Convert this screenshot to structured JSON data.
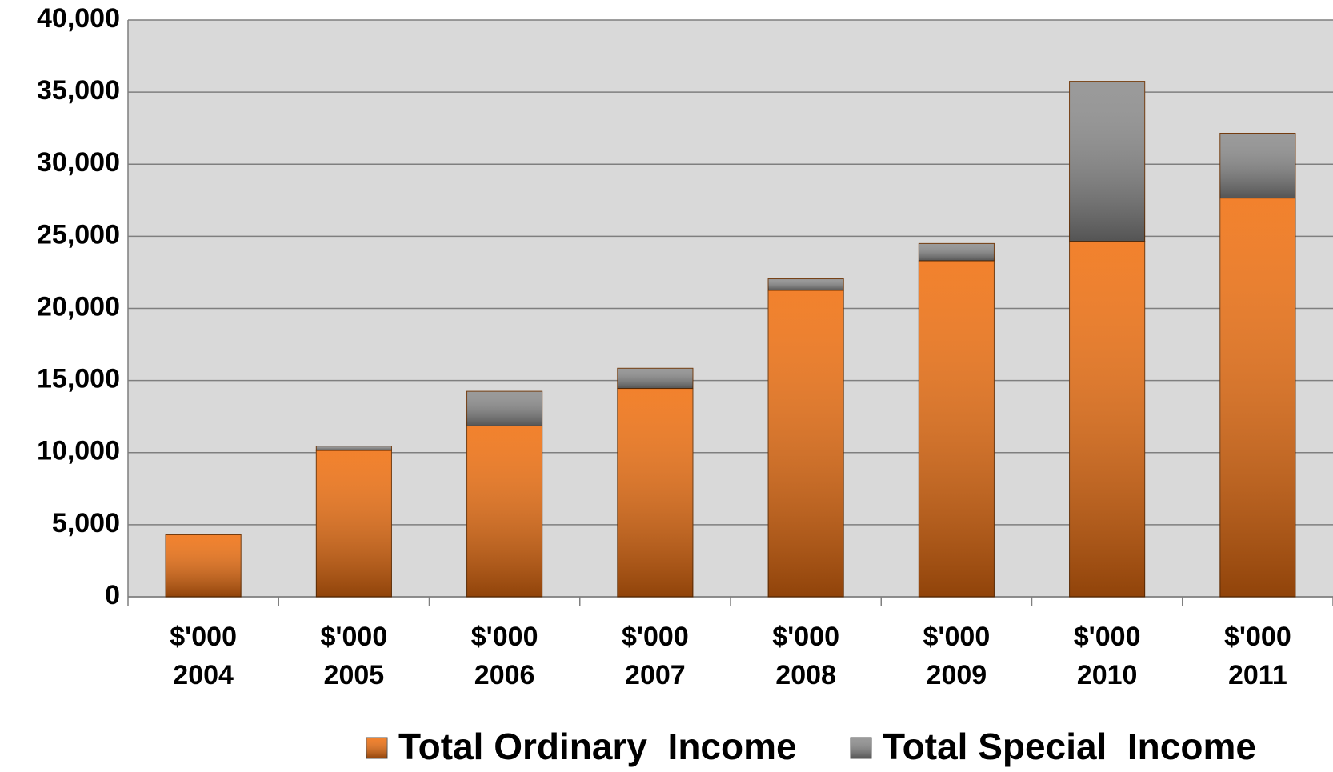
{
  "chart_data": {
    "type": "bar",
    "stacked": true,
    "categories": [
      [
        "$'000",
        "2004"
      ],
      [
        "$'000",
        "2005"
      ],
      [
        "$'000",
        "2006"
      ],
      [
        "$'000",
        "2007"
      ],
      [
        "$'000",
        "2008"
      ],
      [
        "$'000",
        "2009"
      ],
      [
        "$'000",
        "2010"
      ],
      [
        "$'000",
        "2011"
      ]
    ],
    "series": [
      {
        "name": "Total Ordinary  Income",
        "color": "#f07010",
        "values": [
          4300,
          10150,
          11850,
          14450,
          21250,
          23300,
          24650,
          27650
        ]
      },
      {
        "name": "Total Special  Income",
        "color": "#8c8c8c",
        "values": [
          0,
          300,
          2400,
          1400,
          800,
          1200,
          11100,
          4500
        ]
      }
    ],
    "ylim": [
      0,
      40000
    ],
    "yticks": [
      {
        "value": 0,
        "label": "0"
      },
      {
        "value": 5000,
        "label": "5,000"
      },
      {
        "value": 10000,
        "label": "10,000"
      },
      {
        "value": 15000,
        "label": "15,000"
      },
      {
        "value": 20000,
        "label": "20,000"
      },
      {
        "value": 25000,
        "label": "25,000"
      },
      {
        "value": 30000,
        "label": "30,000"
      },
      {
        "value": 35000,
        "label": "35,000"
      },
      {
        "value": 40000,
        "label": "40,000"
      }
    ],
    "grid": true,
    "legend": "bottom"
  }
}
